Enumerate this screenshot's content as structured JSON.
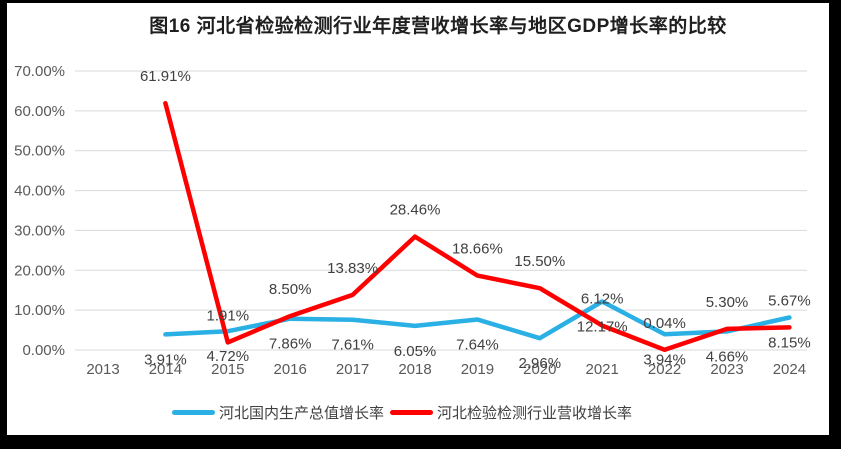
{
  "window": {
    "background_color": "#000000",
    "canvas_color": "#ffffff"
  },
  "chart_data": {
    "type": "line",
    "title": "图16 河北省检验检测行业年度营收增长率与地区GDP增长率的比较",
    "categories": [
      "2013",
      "2014",
      "2015",
      "2016",
      "2017",
      "2018",
      "2019",
      "2020",
      "2021",
      "2022",
      "2023",
      "2024"
    ],
    "series": [
      {
        "key": "gdp-growth",
        "name": "河北国内生产总值增长率",
        "color": "#2AB0E4",
        "label_position": "below",
        "values": [
          null,
          3.91,
          4.72,
          7.86,
          7.61,
          6.05,
          7.64,
          2.96,
          12.17,
          3.94,
          4.66,
          8.15
        ]
      },
      {
        "key": "revenue-growth",
        "name": "河北检验检测行业营收增长率",
        "color": "#FF0000",
        "label_position": "above",
        "values": [
          null,
          61.91,
          1.91,
          8.5,
          13.83,
          28.46,
          18.66,
          15.5,
          6.12,
          0.04,
          5.3,
          5.67
        ]
      }
    ],
    "y_axis": {
      "min": 0,
      "max": 70,
      "step": 10,
      "tick_format": "0.00%"
    },
    "ylim": [
      0,
      70
    ],
    "grid": true,
    "data_labels_visible": true,
    "legend_position": "bottom"
  },
  "colors": {
    "gridline": "#D9D9D9",
    "axis_text": "#595959",
    "data_label_text": "#404040",
    "title_text": "#1F1F1F"
  }
}
